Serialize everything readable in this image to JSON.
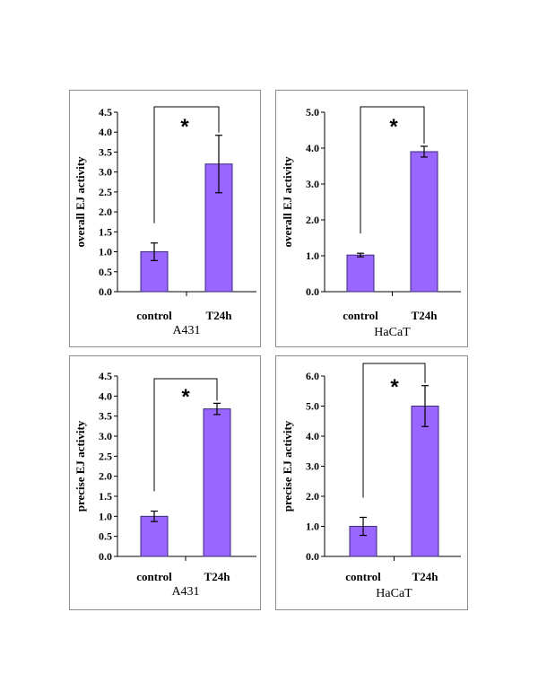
{
  "colors": {
    "bar": "#9966FF",
    "bar_stroke": "#3b2a7a",
    "axis": "#000000",
    "frame": "#8c8c8c"
  },
  "chart_data": [
    {
      "type": "bar",
      "categories": [
        "control",
        "T24h"
      ],
      "values": [
        1.0,
        3.2
      ],
      "errors": [
        0.22,
        0.72
      ],
      "ylabel": "overall EJ activity",
      "xlabel": "A431",
      "ylim": [
        0,
        4.5
      ],
      "yticks": [
        "0.0",
        "0.5",
        "1.0",
        "1.5",
        "2.0",
        "2.5",
        "3.0",
        "3.5",
        "4.0",
        "4.5"
      ],
      "significance": "*"
    },
    {
      "type": "bar",
      "categories": [
        "control",
        "T24h"
      ],
      "values": [
        1.02,
        3.9
      ],
      "errors": [
        0.05,
        0.15
      ],
      "ylabel": "overall EJ activity",
      "xlabel": "HaCaT",
      "ylim": [
        0,
        5.0
      ],
      "yticks": [
        "0.0",
        "1.0",
        "2.0",
        "3.0",
        "4.0",
        "5.0"
      ],
      "significance": "*"
    },
    {
      "type": "bar",
      "categories": [
        "control",
        "T24h"
      ],
      "values": [
        1.0,
        3.68
      ],
      "errors": [
        0.13,
        0.14
      ],
      "ylabel": "precise EJ activity",
      "xlabel": "A431",
      "ylim": [
        0,
        4.5
      ],
      "yticks": [
        "0.0",
        "0.5",
        "1.0",
        "1.5",
        "2.0",
        "2.5",
        "3.0",
        "3.5",
        "4.0",
        "4.5"
      ],
      "significance": "*"
    },
    {
      "type": "bar",
      "categories": [
        "control",
        "T24h"
      ],
      "values": [
        1.0,
        5.0
      ],
      "errors": [
        0.3,
        0.68
      ],
      "ylabel": "precise EJ activity",
      "xlabel": "HaCaT",
      "ylim": [
        0,
        6.0
      ],
      "yticks": [
        "0.0",
        "1.0",
        "2.0",
        "3.0",
        "4.0",
        "5.0",
        "6.0"
      ],
      "significance": "*"
    }
  ]
}
